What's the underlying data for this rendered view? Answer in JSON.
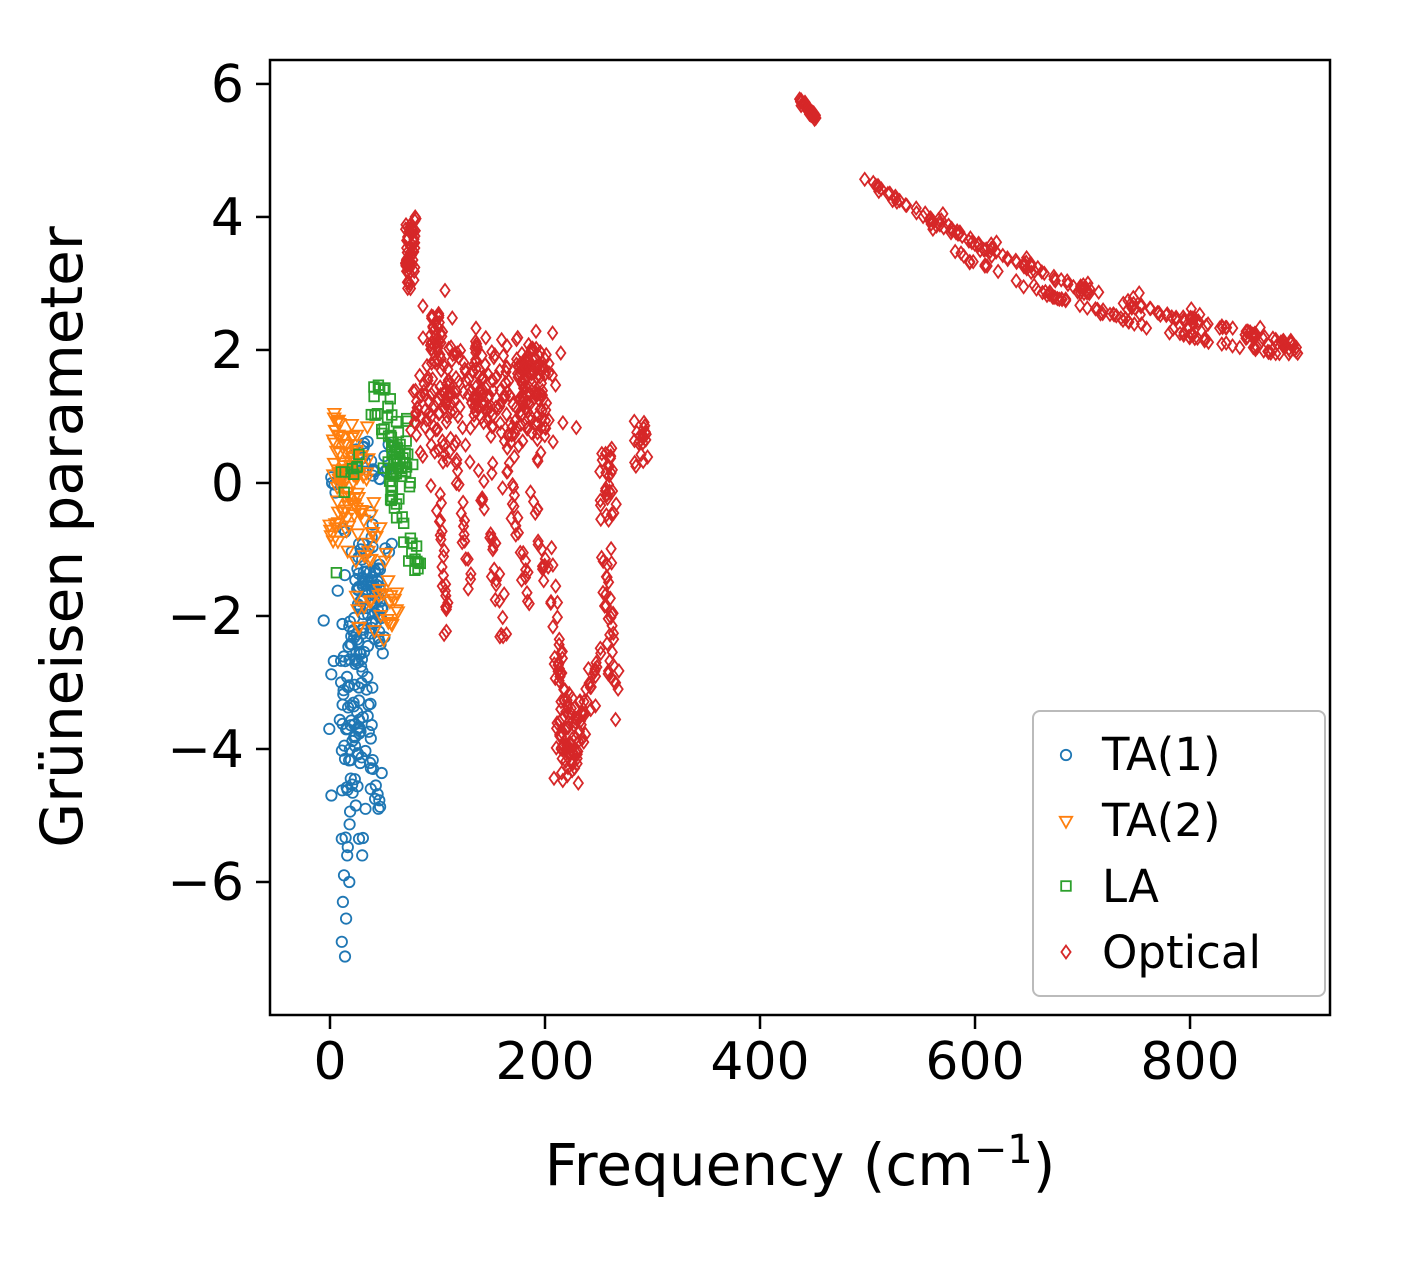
{
  "chart_data": {
    "type": "scatter",
    "title": "",
    "xlabel": "Frequency (cm−1)",
    "xlabel_parts": {
      "prefix": "Frequency (cm",
      "sup": "−1",
      "suffix": ")"
    },
    "ylabel": "Grüneisen parameter",
    "xlim": [
      -55.8,
      930.2
    ],
    "ylim": [
      -8.0,
      6.36
    ],
    "xticks": [
      0,
      200,
      400,
      600,
      800
    ],
    "yticks": [
      -6,
      -4,
      -2,
      0,
      2,
      4,
      6
    ],
    "grid": false,
    "legend": {
      "position": "lower right",
      "border_color": "#bbbbbb",
      "entries": [
        "TA(1)",
        "TA(2)",
        "LA",
        "Optical"
      ]
    },
    "series": [
      {
        "name": "TA(1)",
        "marker": "circle",
        "color": "#1f77b4",
        "clusters": [
          {
            "type": "gauss",
            "cx": 22,
            "cy": -3.1,
            "sx": 9,
            "sy": 1.05,
            "n": 110
          },
          {
            "type": "gauss",
            "cx": 40,
            "cy": -1.7,
            "sx": 7,
            "sy": 0.55,
            "n": 35
          },
          {
            "type": "uniform",
            "x0": 22,
            "x1": 55,
            "y0": 0.05,
            "y1": 0.65,
            "n": 22
          },
          {
            "type": "uniform",
            "x0": 0,
            "x1": 10,
            "y0": -0.15,
            "y1": 0.1,
            "n": 5
          },
          {
            "type": "uniform",
            "x0": 30,
            "x1": 50,
            "y0": -2.6,
            "y1": -0.9,
            "n": 25
          },
          {
            "type": "uniform",
            "x0": 25,
            "x1": 48,
            "y0": -1.6,
            "y1": -0.6,
            "n": 14
          },
          {
            "type": "line",
            "x1": 36,
            "y1": -3.6,
            "x2": 46,
            "y2": -4.9,
            "n": 10,
            "jx": 3,
            "jy": 0.15
          }
        ],
        "points": [
          [
            11,
            -5.35
          ],
          [
            16,
            -5.6
          ],
          [
            13,
            -5.9
          ],
          [
            18,
            -6.0
          ],
          [
            12,
            -6.3
          ],
          [
            15,
            -6.55
          ],
          [
            11,
            -6.9
          ],
          [
            14,
            -7.12
          ],
          [
            27,
            -5.35
          ],
          [
            30,
            -5.6
          ],
          [
            24,
            -4.85
          ],
          [
            33,
            -4.9
          ],
          [
            38,
            -4.6
          ],
          [
            42,
            -4.75
          ],
          [
            45,
            -4.9
          ],
          [
            40,
            -4.3
          ],
          [
            2,
            0.0
          ],
          [
            35,
            0.62
          ]
        ]
      },
      {
        "name": "TA(2)",
        "marker": "triangle-down",
        "color": "#ff7f0e",
        "clusters": [
          {
            "type": "gauss",
            "cx": 18,
            "cy": 0.05,
            "sx": 9,
            "sy": 0.4,
            "n": 70
          },
          {
            "type": "uniform",
            "x0": 2,
            "x1": 16,
            "y0": 0.45,
            "y1": 1.05,
            "n": 12
          },
          {
            "type": "gauss",
            "cx": 38,
            "cy": -1.1,
            "sx": 9,
            "sy": 0.55,
            "n": 30
          },
          {
            "type": "uniform",
            "x0": 42,
            "x1": 64,
            "y0": -2.4,
            "y1": -1.5,
            "n": 10
          },
          {
            "type": "uniform",
            "x0": 0,
            "x1": 8,
            "y0": -0.9,
            "y1": -0.3,
            "n": 6
          }
        ],
        "points": [
          [
            4,
            1.05
          ],
          [
            8,
            0.95
          ],
          [
            57,
            -2.1
          ],
          [
            62,
            -1.9
          ],
          [
            50,
            -2.35
          ]
        ]
      },
      {
        "name": "LA",
        "marker": "square",
        "color": "#2ca02c",
        "clusters": [
          {
            "type": "gauss",
            "cx": 63,
            "cy": 0.15,
            "sx": 6,
            "sy": 0.38,
            "n": 55
          },
          {
            "type": "uniform",
            "x0": 38,
            "x1": 58,
            "y0": 0.6,
            "y1": 1.45,
            "n": 16
          },
          {
            "type": "line",
            "x1": 62,
            "y1": -0.35,
            "x2": 82,
            "y2": -1.25,
            "n": 14,
            "jx": 4,
            "jy": 0.18
          },
          {
            "type": "uniform",
            "x0": 10,
            "x1": 36,
            "y0": -0.2,
            "y1": 0.45,
            "n": 8
          }
        ],
        "points": [
          [
            6,
            -1.35
          ],
          [
            45,
            1.47
          ],
          [
            41,
            1.3
          ],
          [
            50,
            1.4
          ]
        ]
      },
      {
        "name": "Optical",
        "marker": "diamond",
        "color": "#d62728",
        "clusters": [
          {
            "type": "uniform",
            "x0": 70,
            "x1": 80,
            "y0": 2.9,
            "y1": 4.05,
            "n": 55
          },
          {
            "type": "gauss",
            "cx": 88,
            "cy": 1.05,
            "sx": 7,
            "sy": 0.3,
            "n": 35
          },
          {
            "type": "uniform",
            "x0": 93,
            "x1": 105,
            "y0": 1.75,
            "y1": 2.55,
            "n": 28
          },
          {
            "type": "gauss",
            "cx": 112,
            "cy": 1.35,
            "sx": 11,
            "sy": 0.6,
            "n": 80
          },
          {
            "type": "line",
            "x1": 99,
            "y1": 0.2,
            "x2": 110,
            "y2": -2.45,
            "n": 22,
            "jx": 3,
            "jy": 0.18
          },
          {
            "type": "line",
            "x1": 118,
            "y1": 0.1,
            "x2": 129,
            "y2": -1.6,
            "n": 14,
            "jx": 3,
            "jy": 0.15
          },
          {
            "type": "gauss",
            "cx": 140,
            "cy": 1.55,
            "sx": 8,
            "sy": 0.38,
            "n": 45
          },
          {
            "type": "gauss",
            "cx": 168,
            "cy": 1.25,
            "sx": 18,
            "sy": 0.45,
            "n": 110
          },
          {
            "type": "gauss",
            "cx": 186,
            "cy": 1.72,
            "sx": 10,
            "sy": 0.22,
            "n": 40
          },
          {
            "type": "gauss",
            "cx": 196,
            "cy": 1.1,
            "sx": 8,
            "sy": 0.45,
            "n": 45
          },
          {
            "type": "line",
            "x1": 141,
            "y1": 0.1,
            "x2": 162,
            "y2": -2.3,
            "n": 26,
            "jx": 4,
            "jy": 0.2
          },
          {
            "type": "line",
            "x1": 167,
            "y1": 0.15,
            "x2": 187,
            "y2": -1.95,
            "n": 22,
            "jx": 4,
            "jy": 0.2
          },
          {
            "type": "line",
            "x1": 188,
            "y1": 0.1,
            "x2": 201,
            "y2": -1.5,
            "n": 14,
            "jx": 3,
            "jy": 0.18
          },
          {
            "type": "line",
            "x1": 204,
            "y1": -0.9,
            "x2": 221,
            "y2": -4.3,
            "n": 40,
            "jx": 4,
            "jy": 0.25
          },
          {
            "type": "line",
            "x1": 221,
            "y1": -4.35,
            "x2": 251,
            "y2": -2.55,
            "n": 40,
            "jx": 4,
            "jy": 0.25
          },
          {
            "type": "gauss",
            "cx": 223,
            "cy": -3.85,
            "sx": 7,
            "sy": 0.35,
            "n": 45
          },
          {
            "type": "uniform",
            "x0": 251,
            "x1": 267,
            "y0": -0.65,
            "y1": 0.55,
            "n": 30
          },
          {
            "type": "line",
            "x1": 254,
            "y1": -1.0,
            "x2": 264,
            "y2": -3.45,
            "n": 18,
            "jx": 3,
            "jy": 0.2
          },
          {
            "type": "gauss",
            "cx": 262,
            "cy": -2.1,
            "sx": 4,
            "sy": 0.7,
            "n": 18
          },
          {
            "type": "uniform",
            "x0": 283,
            "x1": 296,
            "y0": 0.25,
            "y1": 0.95,
            "n": 20
          },
          {
            "type": "line",
            "x1": 437,
            "y1": 5.76,
            "x2": 453,
            "y2": 5.48,
            "n": 24,
            "jx": 2,
            "jy": 0.05
          },
          {
            "type": "polyline",
            "pts": [
              [
                497,
                4.56
              ],
              [
                515,
                4.38
              ],
              [
                530,
                4.24
              ],
              [
                545,
                4.1
              ],
              [
                560,
                3.97
              ],
              [
                575,
                3.84
              ],
              [
                590,
                3.7
              ],
              [
                605,
                3.57
              ],
              [
                620,
                3.45
              ],
              [
                640,
                3.3
              ],
              [
                660,
                3.16
              ],
              [
                680,
                3.03
              ],
              [
                700,
                2.92
              ],
              [
                720,
                2.81
              ],
              [
                740,
                2.71
              ],
              [
                760,
                2.62
              ],
              [
                780,
                2.53
              ],
              [
                800,
                2.45
              ],
              [
                820,
                2.37
              ],
              [
                840,
                2.3
              ],
              [
                860,
                2.23
              ],
              [
                880,
                2.15
              ],
              [
                900,
                2.07
              ]
            ],
            "n": 105,
            "jx": 3,
            "jy": 0.035
          },
          {
            "type": "polyline",
            "pts": [
              [
                575,
                3.5
              ],
              [
                595,
                3.35
              ],
              [
                615,
                3.2
              ],
              [
                635,
                3.06
              ],
              [
                655,
                2.93
              ],
              [
                675,
                2.8
              ],
              [
                695,
                2.69
              ],
              [
                715,
                2.58
              ],
              [
                735,
                2.48
              ],
              [
                755,
                2.39
              ],
              [
                775,
                2.31
              ],
              [
                795,
                2.23
              ],
              [
                815,
                2.16
              ],
              [
                835,
                2.09
              ],
              [
                855,
                2.03
              ],
              [
                875,
                1.98
              ],
              [
                895,
                1.93
              ]
            ],
            "n": 80,
            "jx": 3,
            "jy": 0.035
          },
          {
            "type": "gauss",
            "cx": 565,
            "cy": 3.93,
            "sx": 5,
            "sy": 0.07,
            "n": 10
          },
          {
            "type": "gauss",
            "cx": 612,
            "cy": 3.52,
            "sx": 5,
            "sy": 0.07,
            "n": 10
          },
          {
            "type": "gauss",
            "cx": 648,
            "cy": 3.28,
            "sx": 5,
            "sy": 0.06,
            "n": 10
          },
          {
            "type": "gauss",
            "cx": 700,
            "cy": 2.92,
            "sx": 5,
            "sy": 0.06,
            "n": 12
          },
          {
            "type": "gauss",
            "cx": 747,
            "cy": 2.68,
            "sx": 5,
            "sy": 0.06,
            "n": 10
          },
          {
            "type": "gauss",
            "cx": 800,
            "cy": 2.46,
            "sx": 5,
            "sy": 0.06,
            "n": 12
          },
          {
            "type": "gauss",
            "cx": 858,
            "cy": 2.22,
            "sx": 6,
            "sy": 0.06,
            "n": 14
          },
          {
            "type": "gauss",
            "cx": 893,
            "cy": 2.03,
            "sx": 6,
            "sy": 0.05,
            "n": 14
          }
        ],
        "points": [
          [
            445,
            5.65
          ],
          [
            449,
            5.55
          ],
          [
            441,
            5.7
          ]
        ]
      }
    ]
  }
}
